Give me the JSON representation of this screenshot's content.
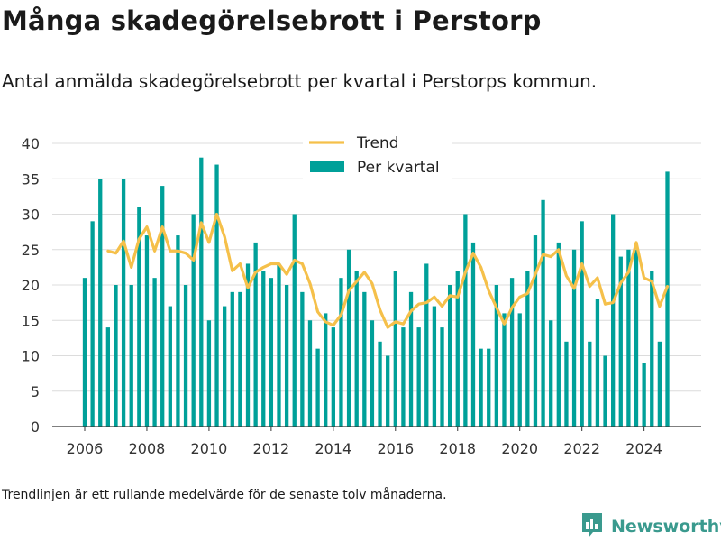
{
  "header": {
    "title": "Många skadegörelsebrott i Perstorp",
    "subtitle": "Antal anmälda skadegörelsebrott per kvartal i Perstorps kommun."
  },
  "footer": {
    "note": "Trendlinjen är ett rullande medelvärde för de senaste tolv månaderna.",
    "brand": "Newsworthy"
  },
  "colors": {
    "bar": "#00a099",
    "trend": "#f5c04a",
    "brand": "#3a9a8e"
  },
  "chart_data": {
    "type": "bar",
    "title": "",
    "xlabel": "",
    "ylabel": "",
    "ylim": [
      0,
      40
    ],
    "yticks": [
      0,
      5,
      10,
      15,
      20,
      25,
      30,
      35,
      40
    ],
    "xticks": [
      "2006",
      "2008",
      "2010",
      "2012",
      "2014",
      "2016",
      "2018",
      "2020",
      "2022",
      "2024"
    ],
    "grid": true,
    "legend_position": "top-center",
    "categories": [
      "2006 Q1",
      "2006 Q2",
      "2006 Q3",
      "2006 Q4",
      "2007 Q1",
      "2007 Q2",
      "2007 Q3",
      "2007 Q4",
      "2008 Q1",
      "2008 Q2",
      "2008 Q3",
      "2008 Q4",
      "2009 Q1",
      "2009 Q2",
      "2009 Q3",
      "2009 Q4",
      "2010 Q1",
      "2010 Q2",
      "2010 Q3",
      "2010 Q4",
      "2011 Q1",
      "2011 Q2",
      "2011 Q3",
      "2011 Q4",
      "2012 Q1",
      "2012 Q2",
      "2012 Q3",
      "2012 Q4",
      "2013 Q1",
      "2013 Q2",
      "2013 Q3",
      "2013 Q4",
      "2014 Q1",
      "2014 Q2",
      "2014 Q3",
      "2014 Q4",
      "2015 Q1",
      "2015 Q2",
      "2015 Q3",
      "2015 Q4",
      "2016 Q1",
      "2016 Q2",
      "2016 Q3",
      "2016 Q4",
      "2017 Q1",
      "2017 Q2",
      "2017 Q3",
      "2017 Q4",
      "2018 Q1",
      "2018 Q2",
      "2018 Q3",
      "2018 Q4",
      "2019 Q1",
      "2019 Q2",
      "2019 Q3",
      "2019 Q4",
      "2020 Q1",
      "2020 Q2",
      "2020 Q3",
      "2020 Q4",
      "2021 Q1",
      "2021 Q2",
      "2021 Q3",
      "2021 Q4",
      "2022 Q1",
      "2022 Q2",
      "2022 Q3",
      "2022 Q4",
      "2023 Q1",
      "2023 Q2",
      "2023 Q3",
      "2023 Q4",
      "2024 Q1",
      "2024 Q2",
      "2024 Q3",
      "2024 Q4"
    ],
    "series": [
      {
        "name": "Per kvartal",
        "type": "bar",
        "values": [
          21,
          29,
          35,
          14,
          20,
          35,
          20,
          31,
          27,
          21,
          34,
          17,
          27,
          20,
          30,
          38,
          15,
          37,
          17,
          19,
          19,
          23,
          26,
          22,
          21,
          23,
          20,
          30,
          19,
          15,
          11,
          16,
          14,
          21,
          25,
          22,
          19,
          15,
          12,
          10,
          22,
          14,
          19,
          14,
          23,
          17,
          14,
          20,
          22,
          30,
          26,
          11,
          11,
          20,
          16,
          21,
          16,
          22,
          27,
          32,
          15,
          26,
          12,
          25,
          29,
          12,
          18,
          10,
          30,
          24,
          25,
          25,
          9,
          22,
          12,
          36
        ]
      },
      {
        "name": "Trend",
        "type": "line",
        "values": [
          null,
          null,
          null,
          24.8,
          24.5,
          26.2,
          22.5,
          26.5,
          28.2,
          24.8,
          28.2,
          24.8,
          24.8,
          24.5,
          23.5,
          28.8,
          26.0,
          30.0,
          26.8,
          22.0,
          23.0,
          19.6,
          21.8,
          22.5,
          23.0,
          23.0,
          21.5,
          23.5,
          23.0,
          20.2,
          16.2,
          14.8,
          14.3,
          15.8,
          19.2,
          20.5,
          21.8,
          20.2,
          16.5,
          14.0,
          14.8,
          14.5,
          16.3,
          17.3,
          17.5,
          18.3,
          17.0,
          18.5,
          18.3,
          21.8,
          24.5,
          22.5,
          19.2,
          16.8,
          14.5,
          16.8,
          18.3,
          18.8,
          21.5,
          24.3,
          24.0,
          25.0,
          21.3,
          19.5,
          23.0,
          19.8,
          21.0,
          17.3,
          17.5,
          20.3,
          21.8,
          26.0,
          21.0,
          20.5,
          17.0,
          19.8
        ]
      }
    ]
  }
}
